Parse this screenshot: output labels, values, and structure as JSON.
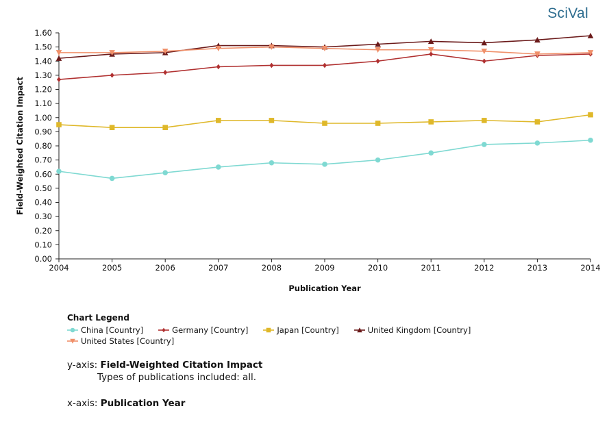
{
  "brand": "SciVal",
  "legend": {
    "title": "Chart Legend",
    "y_axis_prefix": "y-axis:",
    "y_axis_name": "Field-Weighted Citation Impact",
    "y_axis_note": "Types of publications included: all.",
    "x_axis_prefix": "x-axis:",
    "x_axis_name": "Publication Year"
  },
  "chart_data": {
    "type": "line",
    "title": "",
    "xlabel": "Publication Year",
    "ylabel": "Field-Weighted Citation Impact",
    "x": [
      2004,
      2005,
      2006,
      2007,
      2008,
      2009,
      2010,
      2011,
      2012,
      2013,
      2014
    ],
    "ylim": [
      0,
      1.6
    ],
    "yticks": [
      0.0,
      0.1,
      0.2,
      0.3,
      0.4,
      0.5,
      0.6,
      0.7,
      0.8,
      0.9,
      1.0,
      1.1,
      1.2,
      1.3,
      1.4,
      1.5,
      1.6
    ],
    "grid": false,
    "legend_position": "bottom",
    "series": [
      {
        "name": "China [Country]",
        "color": "#7fd9d2",
        "marker": "circle",
        "values": [
          0.62,
          0.57,
          0.61,
          0.65,
          0.68,
          0.67,
          0.7,
          0.75,
          0.81,
          0.82,
          0.84
        ]
      },
      {
        "name": "Germany [Country]",
        "color": "#b03030",
        "marker": "diamond",
        "values": [
          1.27,
          1.3,
          1.32,
          1.36,
          1.37,
          1.37,
          1.4,
          1.45,
          1.4,
          1.44,
          1.45
        ]
      },
      {
        "name": "Japan [Country]",
        "color": "#dfb82a",
        "marker": "square",
        "values": [
          0.95,
          0.93,
          0.93,
          0.98,
          0.98,
          0.96,
          0.96,
          0.97,
          0.98,
          0.97,
          1.02
        ]
      },
      {
        "name": "United Kingdom [Country]",
        "color": "#6b1a1a",
        "marker": "triangle-up",
        "values": [
          1.42,
          1.45,
          1.46,
          1.51,
          1.51,
          1.5,
          1.52,
          1.54,
          1.53,
          1.55,
          1.58
        ]
      },
      {
        "name": "United States [Country]",
        "color": "#f0906a",
        "marker": "triangle-down",
        "values": [
          1.46,
          1.46,
          1.47,
          1.49,
          1.5,
          1.49,
          1.48,
          1.48,
          1.47,
          1.45,
          1.46
        ]
      }
    ]
  }
}
